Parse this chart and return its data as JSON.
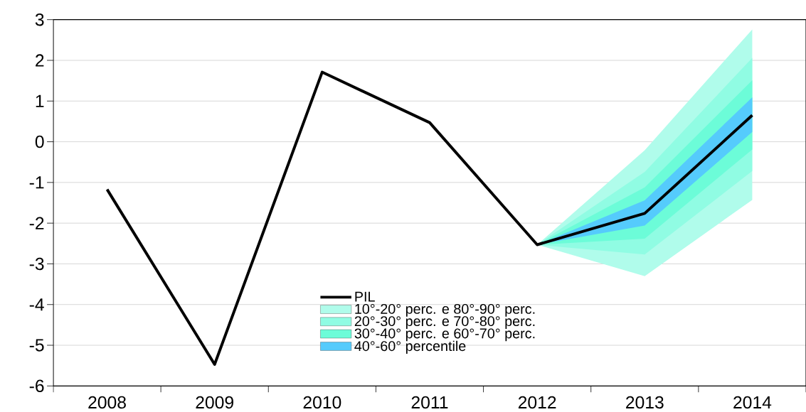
{
  "chart_data": {
    "type": "line",
    "categories": [
      "2008",
      "2009",
      "2010",
      "2011",
      "2012",
      "2013",
      "2014"
    ],
    "series": [
      {
        "name": "PIL",
        "color": "#000000",
        "values": [
          -1.17,
          -5.47,
          1.71,
          0.47,
          -2.53,
          -1.76,
          0.65
        ]
      },
      {
        "name": "10°-20° perc. e 80°-90° perc.",
        "type": "area",
        "color": "#b0fceb",
        "values": [
          null,
          null,
          null,
          null,
          null,
          null,
          null
        ],
        "lower": [
          null,
          null,
          null,
          null,
          -2.53,
          -3.3,
          -1.43
        ],
        "upper": [
          null,
          null,
          null,
          null,
          -2.53,
          -0.21,
          2.76
        ]
      },
      {
        "name": "20°-30° perc. e 70°-80° perc.",
        "type": "area",
        "color": "#90fce3",
        "values": [
          null,
          null,
          null,
          null,
          null,
          null,
          null
        ],
        "lower": [
          null,
          null,
          null,
          null,
          -2.53,
          -2.77,
          -0.72
        ],
        "upper": [
          null,
          null,
          null,
          null,
          -2.53,
          -0.74,
          2.06
        ]
      },
      {
        "name": "30°-40° perc. e 60°-70° perc.",
        "type": "area",
        "color": "#6cfcd8",
        "values": [
          null,
          null,
          null,
          null,
          null,
          null,
          null
        ],
        "lower": [
          null,
          null,
          null,
          null,
          -2.53,
          -2.38,
          -0.19
        ],
        "upper": [
          null,
          null,
          null,
          null,
          -2.53,
          -1.12,
          1.51
        ]
      },
      {
        "name": "40°-60° percentile",
        "type": "area",
        "color": "#55cbfc",
        "values": [
          null,
          null,
          null,
          null,
          null,
          null,
          null
        ],
        "lower": [
          null,
          null,
          null,
          null,
          -2.53,
          -2.06,
          0.24
        ],
        "upper": [
          null,
          null,
          null,
          null,
          -2.53,
          -1.44,
          1.09
        ]
      }
    ],
    "ylim": [
      -6,
      3
    ],
    "yticks": [
      -6,
      -5,
      -4,
      -3,
      -2,
      -1,
      0,
      1,
      2,
      3
    ],
    "grid": "y",
    "legend": "bottom",
    "line_style": "solid",
    "marker": "none"
  }
}
